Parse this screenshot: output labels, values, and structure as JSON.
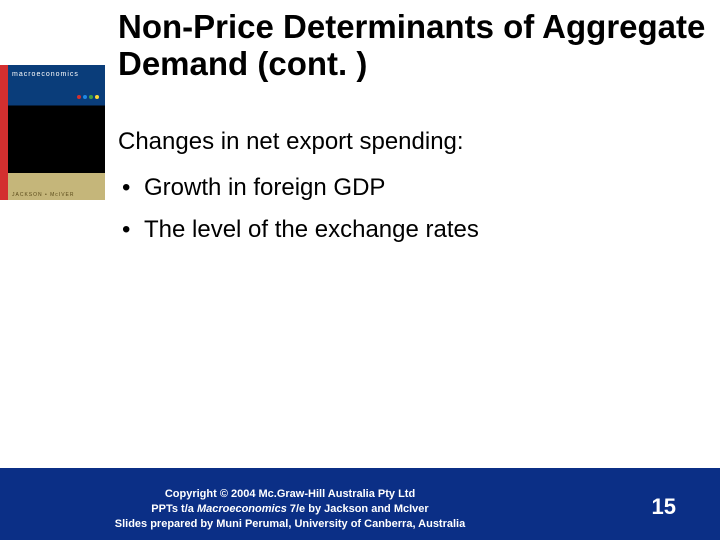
{
  "title": "Non-Price Determinants of Aggregate Demand (cont. )",
  "subhead": "Changes in net export spending:",
  "bullets": [
    "Growth in foreign GDP",
    "The level of the exchange rates"
  ],
  "thumb": {
    "title": "macroeconomics",
    "authors": "JACKSON • McIVER",
    "dot_colors": [
      "#d32f2f",
      "#1e88e5",
      "#43a047",
      "#fdd835"
    ]
  },
  "footer": {
    "line1_a": "Copyright ",
    "line1_b": " 2004 Mc.Graw-Hill Australia Pty Ltd",
    "copyright_symbol": "©",
    "line2_a": "PPTs t/a ",
    "line2_ital": "Macroeconomics",
    "line2_b": " 7/e by Jackson and McIver",
    "line3": "Slides prepared by Muni Perumal, University of Canberra, Australia"
  },
  "page_number": "15",
  "colors": {
    "footer_bg": "#0b2f86",
    "red_strip": "#d32f2f"
  }
}
